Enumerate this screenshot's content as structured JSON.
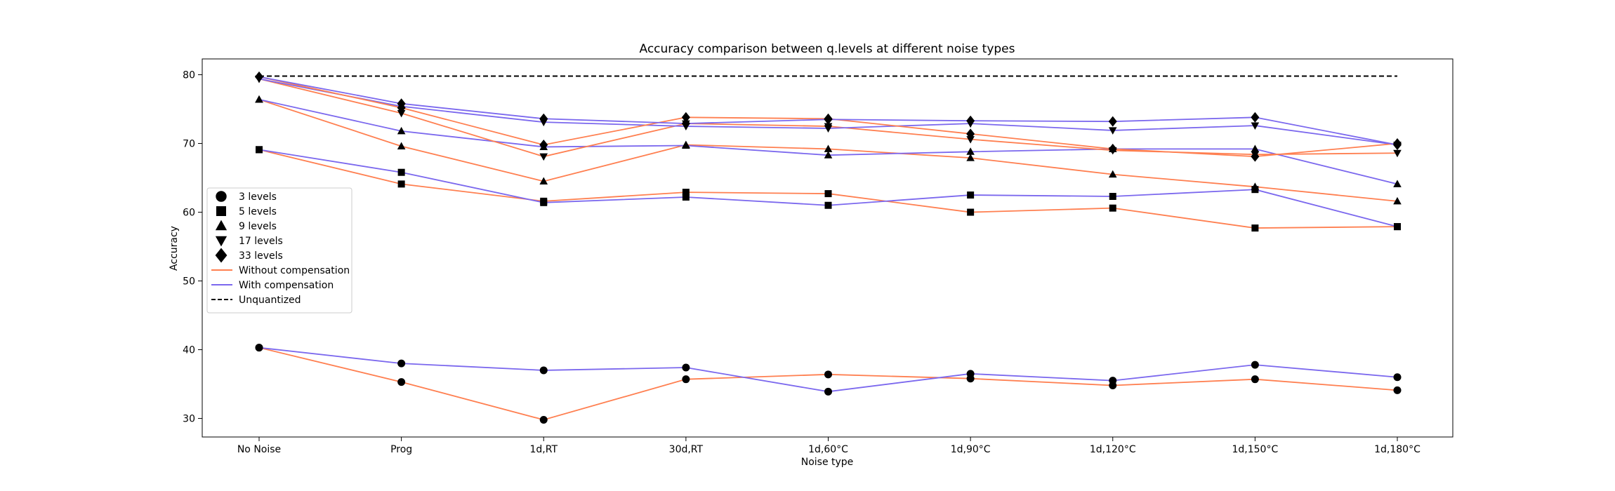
{
  "chart_data": {
    "type": "line",
    "title": "Accuracy comparison between q.levels at different noise types",
    "xlabel": "Noise type",
    "ylabel": "Accuracy",
    "categories": [
      "No Noise",
      "Prog",
      "1d,RT",
      "30d,RT",
      "1d,60°C",
      "1d,90°C",
      "1d,120°C",
      "1d,150°C",
      "1d,180°C"
    ],
    "ylim": [
      27.3,
      82.3
    ],
    "yticks": [
      30,
      40,
      50,
      60,
      70,
      80
    ],
    "grid": false,
    "legend_position": "center-left",
    "colors": {
      "without": "#ff7f50",
      "with": "#7b68ee",
      "unquantized": "#000000",
      "marker": "#000000"
    },
    "marker_legend": [
      {
        "label": "3 levels",
        "marker": "circle"
      },
      {
        "label": "5 levels",
        "marker": "square"
      },
      {
        "label": "9 levels",
        "marker": "triangle-up"
      },
      {
        "label": "17 levels",
        "marker": "triangle-down"
      },
      {
        "label": "33 levels",
        "marker": "diamond"
      }
    ],
    "line_legend": [
      {
        "label": "Without compensation",
        "style": "without"
      },
      {
        "label": "With compensation",
        "style": "with"
      },
      {
        "label": "Unquantized",
        "style": "unquantized"
      }
    ],
    "unquantized": 79.8,
    "series": [
      {
        "levels": "3 levels",
        "marker": "circle",
        "compensation": "without",
        "values": [
          40.3,
          35.3,
          29.8,
          35.7,
          36.4,
          35.8,
          34.8,
          35.7,
          34.1
        ]
      },
      {
        "levels": "3 levels",
        "marker": "circle",
        "compensation": "with",
        "values": [
          40.3,
          38.0,
          37.0,
          37.4,
          33.9,
          36.5,
          35.5,
          37.8,
          36.0
        ]
      },
      {
        "levels": "5 levels",
        "marker": "square",
        "compensation": "without",
        "values": [
          69.1,
          64.1,
          61.6,
          62.9,
          62.7,
          60.0,
          60.6,
          57.7,
          57.9
        ]
      },
      {
        "levels": "5 levels",
        "marker": "square",
        "compensation": "with",
        "values": [
          69.1,
          65.8,
          61.4,
          62.2,
          61.0,
          62.5,
          62.3,
          63.3,
          57.9
        ]
      },
      {
        "levels": "9 levels",
        "marker": "triangle-up",
        "compensation": "without",
        "values": [
          76.4,
          69.6,
          64.5,
          69.8,
          69.2,
          67.9,
          65.5,
          63.7,
          61.6
        ]
      },
      {
        "levels": "9 levels",
        "marker": "triangle-up",
        "compensation": "with",
        "values": [
          76.4,
          71.8,
          69.5,
          69.7,
          68.3,
          68.8,
          69.2,
          69.2,
          64.1
        ]
      },
      {
        "levels": "17 levels",
        "marker": "triangle-down",
        "compensation": "without",
        "values": [
          79.4,
          74.4,
          68.1,
          72.9,
          72.5,
          70.6,
          69.0,
          68.4,
          68.6
        ]
      },
      {
        "levels": "17 levels",
        "marker": "triangle-down",
        "compensation": "with",
        "values": [
          79.4,
          75.4,
          73.1,
          72.5,
          72.2,
          72.9,
          71.9,
          72.6,
          69.8
        ]
      },
      {
        "levels": "33 levels",
        "marker": "diamond",
        "compensation": "without",
        "values": [
          79.7,
          75.2,
          69.8,
          73.8,
          73.6,
          71.4,
          69.2,
          68.1,
          70.0
        ]
      },
      {
        "levels": "33 levels",
        "marker": "diamond",
        "compensation": "with",
        "values": [
          79.7,
          75.8,
          73.6,
          72.9,
          73.5,
          73.3,
          73.2,
          73.8,
          69.8
        ]
      }
    ]
  }
}
